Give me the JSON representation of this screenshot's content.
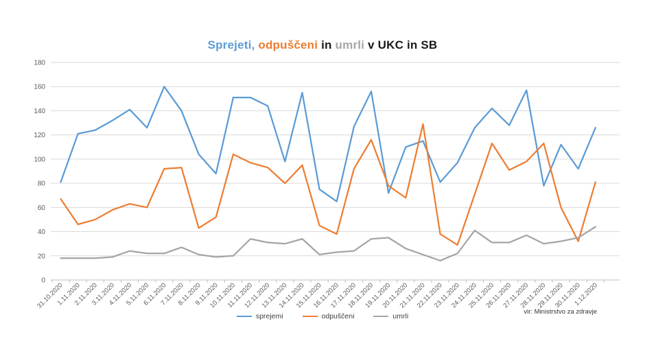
{
  "title": {
    "full_text": "Sprejeti, odpuščeni in umrli v UKC in SB",
    "parts": [
      {
        "text": "Sprejeti,",
        "color": "#5B9BD5"
      },
      {
        "text": " odpuščeni",
        "color": "#ED7D31"
      },
      {
        "text": " in ",
        "color": "#1a1a1a"
      },
      {
        "text": "umrli",
        "color": "#A6A6A6"
      },
      {
        "text": " v UKC in SB",
        "color": "#1a1a1a"
      }
    ]
  },
  "source_note": "vir: Ministrstvo za zdravje",
  "legend": [
    {
      "label": "sprejemi",
      "color": "#5B9BD5"
    },
    {
      "label": "odpuščeni",
      "color": "#ED7D31"
    },
    {
      "label": "umrli",
      "color": "#A5A5A5"
    }
  ],
  "axis_colors": {
    "grid": "#D9D9D9",
    "axis_line": "#BFBFBF",
    "tick_text": "#595959"
  },
  "chart_data": {
    "type": "line",
    "title": "Sprejeti, odpuščeni in umrli v UKC in SB",
    "xlabel": "",
    "ylabel": "",
    "ylim": [
      0,
      180
    ],
    "ytick_step": 20,
    "grid": true,
    "legend_position": "bottom",
    "categories": [
      "31.10.2020",
      "1.11.2020",
      "2.11.2020",
      "3.11.2020",
      "4.11.2020",
      "5.11.2020",
      "6.11.2020",
      "7.11.2020",
      "8.11.2020",
      "9.11.2020",
      "10.11.2020",
      "11.11.2020",
      "12.11.2020",
      "13.11.2020",
      "14.11.2020",
      "15.11.2020",
      "16.11.2020",
      "17.11.2020",
      "18.11.2020",
      "19.11.2020",
      "20.11.2020",
      "21.11.2020",
      "22.11.2020",
      "23.11.2020",
      "24.11.2020",
      "25.11.2020",
      "26.11.2020",
      "27.11.2020",
      "28.11.2020",
      "29.11.2020",
      "30.11.2020",
      "1.12.2020"
    ],
    "series": [
      {
        "name": "sprejemi",
        "color": "#5B9BD5",
        "values": [
          81,
          121,
          124,
          132,
          141,
          126,
          160,
          140,
          104,
          88,
          151,
          151,
          144,
          98,
          155,
          75,
          65,
          127,
          156,
          72,
          110,
          115,
          81,
          97,
          126,
          142,
          128,
          157,
          78,
          112,
          92,
          126
        ]
      },
      {
        "name": "odpuščeni",
        "color": "#ED7D31",
        "values": [
          67,
          46,
          50,
          58,
          63,
          60,
          92,
          93,
          43,
          52,
          104,
          97,
          93,
          80,
          95,
          45,
          38,
          92,
          116,
          78,
          68,
          129,
          38,
          29,
          71,
          113,
          91,
          98,
          113,
          60,
          32,
          81
        ]
      },
      {
        "name": "umrli",
        "color": "#A5A5A5",
        "values": [
          18,
          18,
          18,
          19,
          24,
          22,
          22,
          27,
          21,
          19,
          20,
          34,
          31,
          30,
          34,
          21,
          23,
          24,
          34,
          35,
          26,
          21,
          16,
          22,
          41,
          31,
          31,
          37,
          30,
          32,
          35,
          44
        ]
      }
    ]
  }
}
